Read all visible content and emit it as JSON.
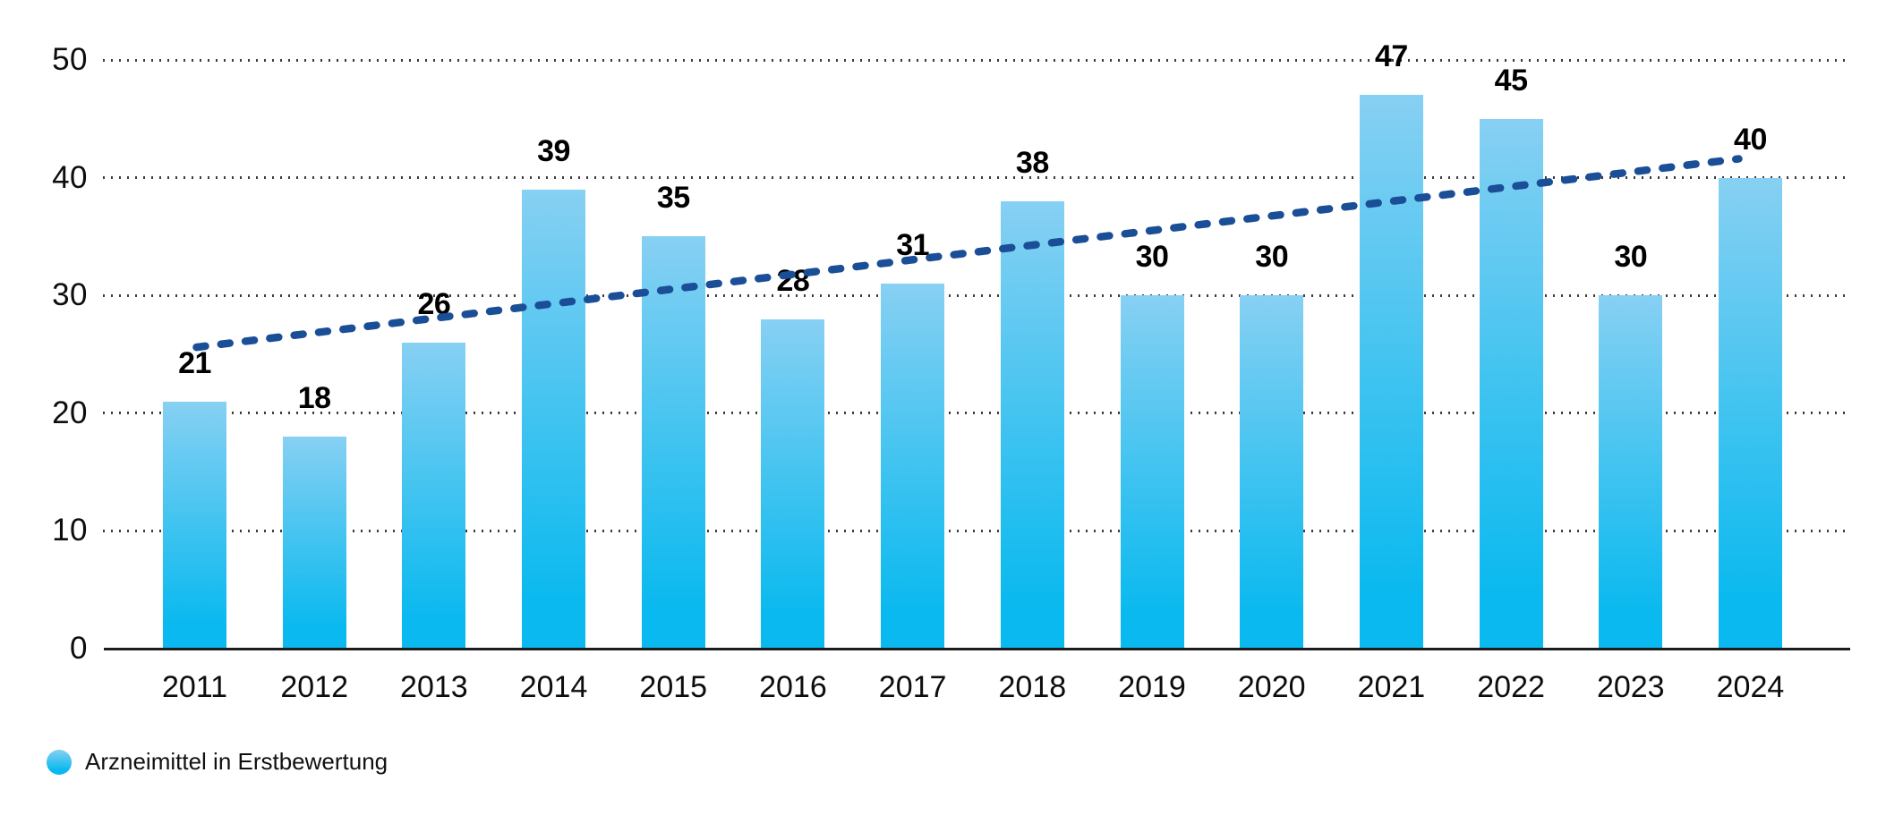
{
  "chart_data": {
    "type": "bar",
    "title": "",
    "categories": [
      "2011",
      "2012",
      "2013",
      "2014",
      "2015",
      "2016",
      "2017",
      "2018",
      "2019",
      "2020",
      "2021",
      "2022",
      "2023",
      "2024"
    ],
    "series": [
      {
        "name": "Arzneimittel in Erstbewertung",
        "values": [
          21,
          18,
          26,
          39,
          35,
          28,
          31,
          38,
          30,
          30,
          47,
          45,
          30,
          40
        ]
      }
    ],
    "data_labels": [
      "21",
      "18",
      "26",
      "39",
      "35",
      "28",
      "31",
      "38",
      "30",
      "30",
      "47",
      "45",
      "30",
      "40"
    ],
    "xlabel": "",
    "ylabel": "",
    "ylim": [
      0,
      50
    ],
    "yticks": [
      0,
      10,
      20,
      30,
      40,
      50
    ],
    "grid": "horizontal-dotted",
    "legend_position": "bottom-left",
    "trendline": {
      "style": "dashed",
      "start_value": 25.6,
      "end_value": 41.6
    }
  },
  "legend": {
    "label": "Arzneimittel in Erstbewertung"
  },
  "colors": {
    "bar_top": "#87d0f3",
    "bar_mid": "#39c2f0",
    "bar_bottom": "#0ab9ef",
    "trend": "#1a4e96",
    "axis": "#1c1c1c",
    "grid_dot": "#3c3c3c",
    "text": "#0d0d0d"
  }
}
